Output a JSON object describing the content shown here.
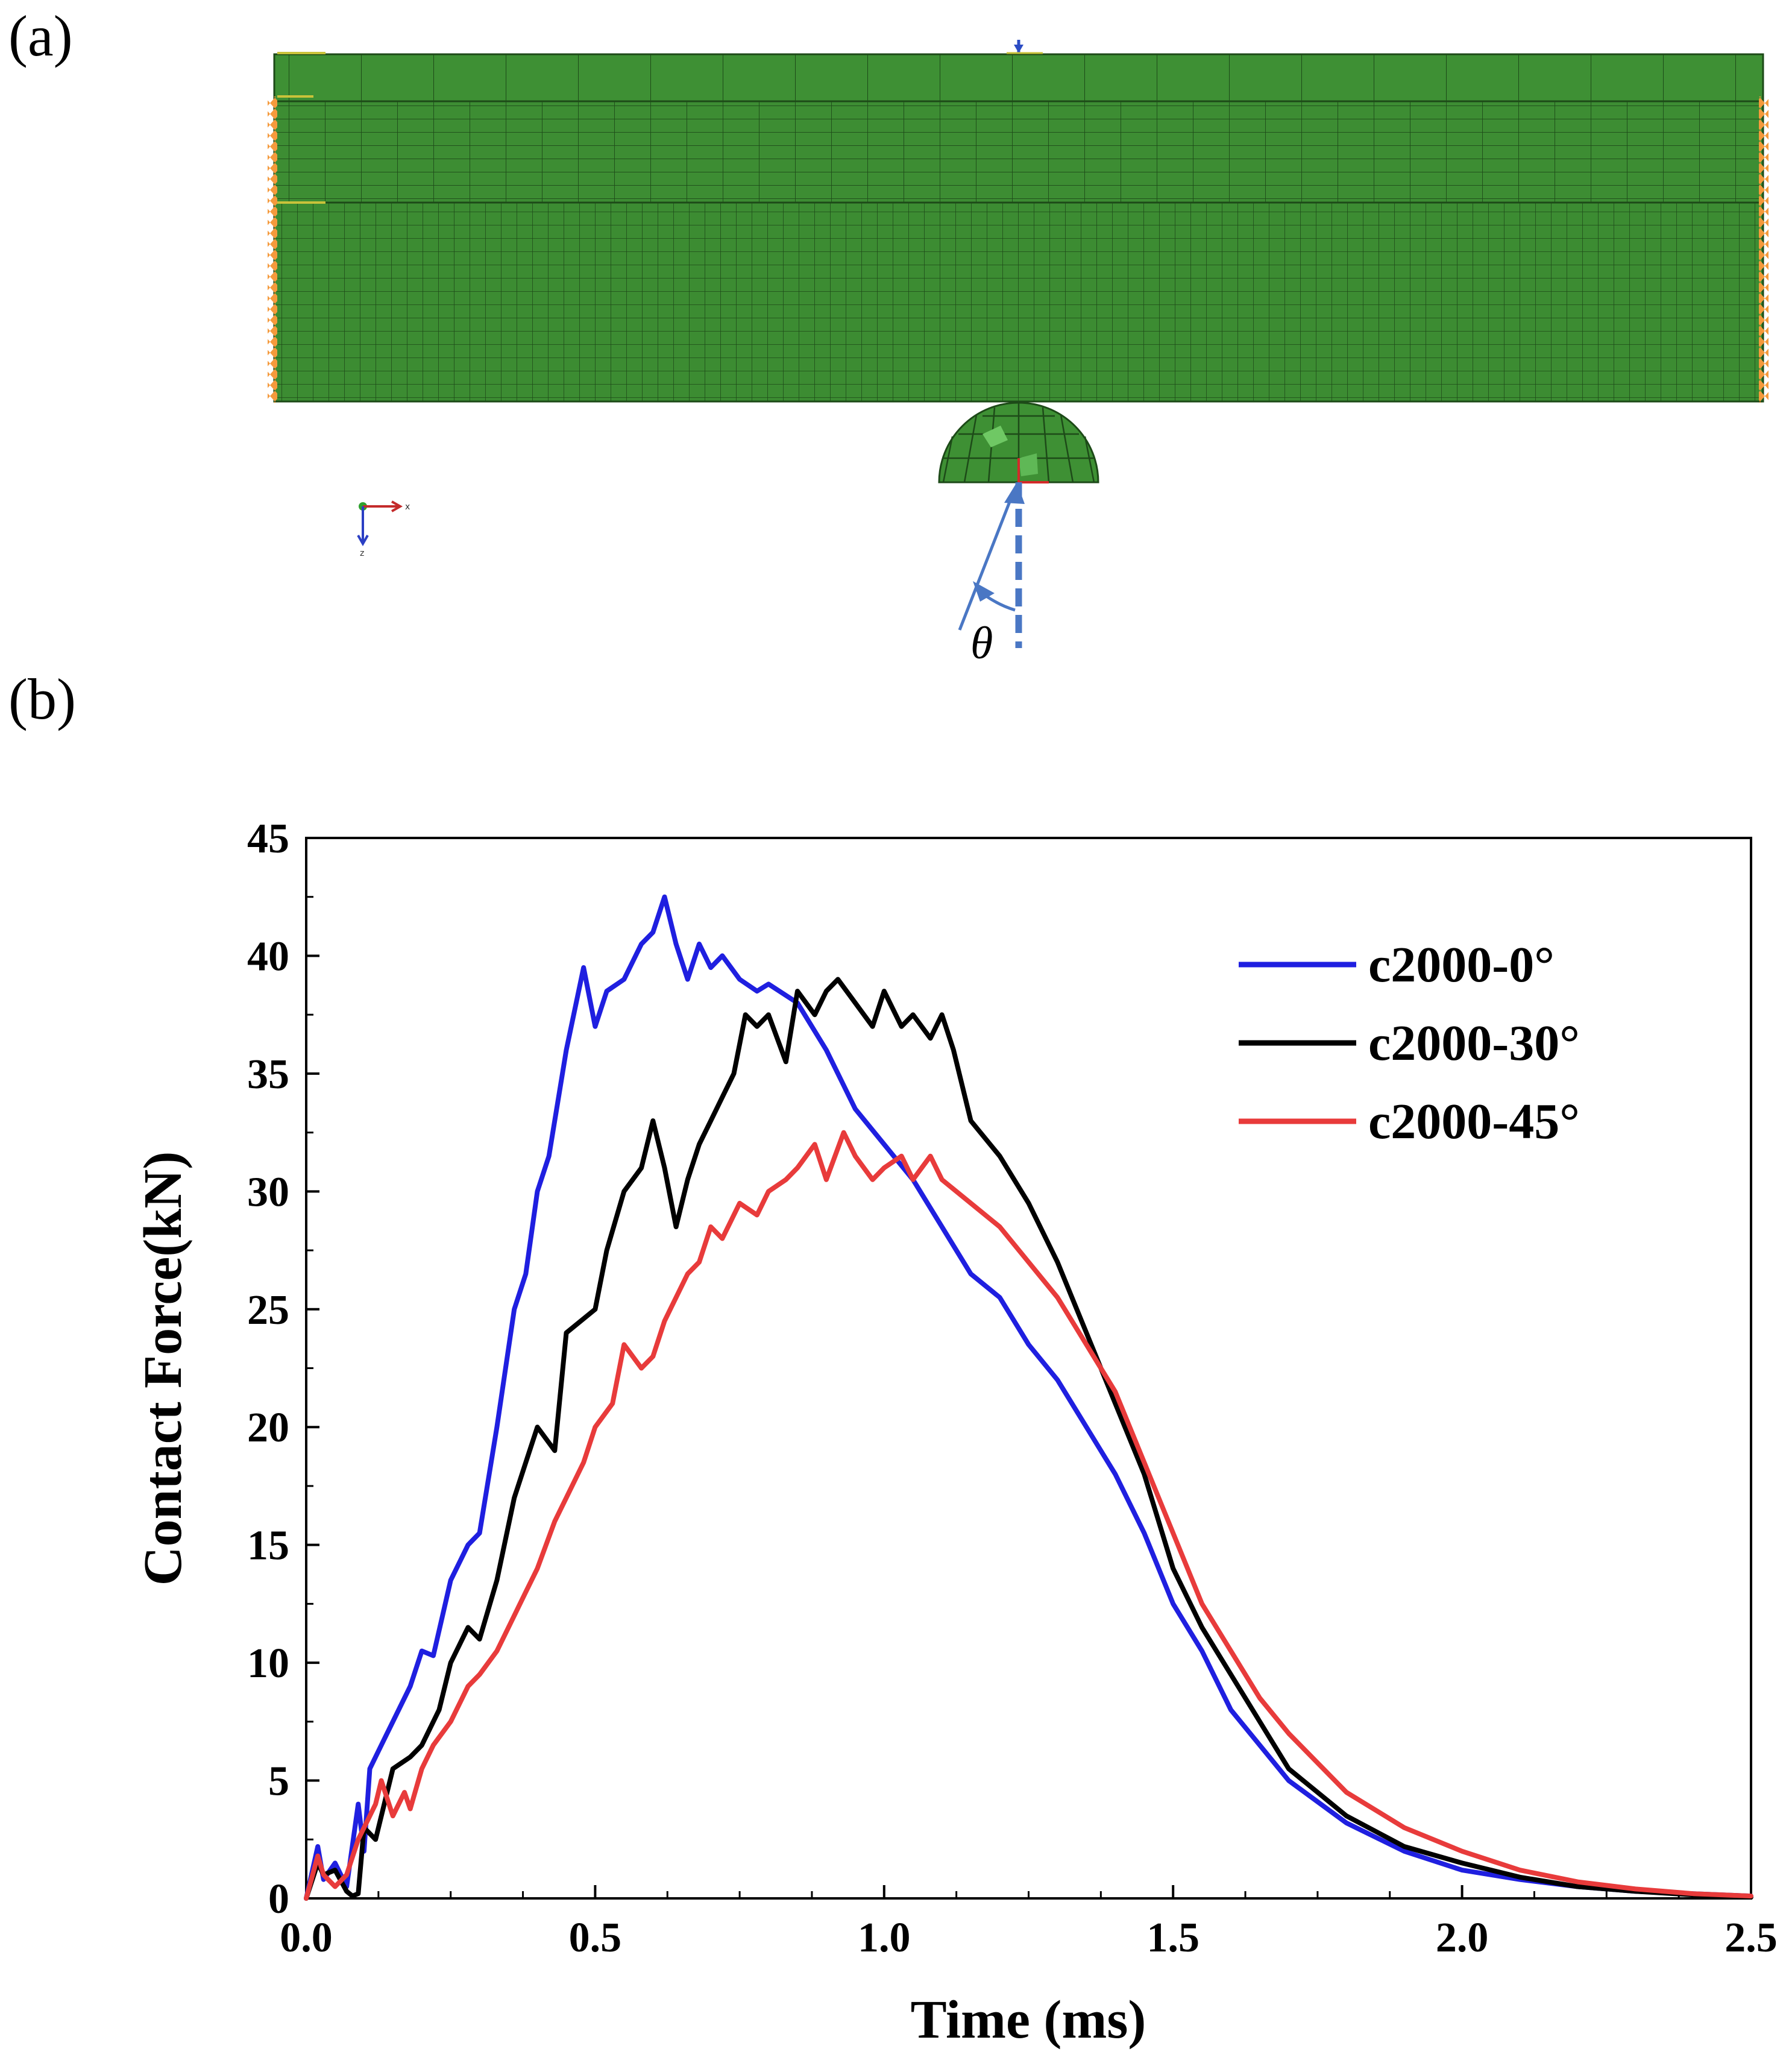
{
  "panels": {
    "a_label": "(a)",
    "b_label": "(b)"
  },
  "model": {
    "angle_symbol": "θ",
    "axis_x_label": "x",
    "axis_z_label": "z",
    "colors": {
      "mesh_fill": "#3c8c32",
      "mesh_line": "#1d4a18",
      "boundary": "#f59a3c",
      "angle_arrow": "#4a77c4"
    }
  },
  "chart_data": {
    "type": "line",
    "title": "",
    "xlabel": "Time (ms)",
    "ylabel": "Contact Force(kN)",
    "xlim": [
      0.0,
      2.5
    ],
    "ylim": [
      0,
      45
    ],
    "xticks": [
      "0.0",
      "0.5",
      "1.0",
      "1.5",
      "2.0",
      "2.5"
    ],
    "yticks": [
      "0",
      "5",
      "10",
      "15",
      "20",
      "25",
      "30",
      "35",
      "40",
      "45"
    ],
    "grid": false,
    "legend_position": "top-right",
    "series": [
      {
        "name": "c2000-0°",
        "color": "#1f1fe0",
        "x": [
          0.0,
          0.02,
          0.03,
          0.05,
          0.07,
          0.09,
          0.1,
          0.11,
          0.13,
          0.15,
          0.18,
          0.2,
          0.22,
          0.25,
          0.28,
          0.3,
          0.33,
          0.36,
          0.38,
          0.4,
          0.42,
          0.45,
          0.48,
          0.5,
          0.52,
          0.55,
          0.58,
          0.6,
          0.62,
          0.64,
          0.66,
          0.68,
          0.7,
          0.72,
          0.75,
          0.78,
          0.8,
          0.85,
          0.9,
          0.95,
          1.0,
          1.05,
          1.1,
          1.15,
          1.2,
          1.25,
          1.3,
          1.35,
          1.4,
          1.45,
          1.5,
          1.55,
          1.6,
          1.65,
          1.7,
          1.8,
          1.9,
          2.0,
          2.1,
          2.2,
          2.3,
          2.4,
          2.5
        ],
        "values": [
          0.0,
          2.2,
          0.8,
          1.5,
          0.5,
          4.0,
          2.0,
          5.5,
          6.5,
          7.5,
          9.0,
          10.5,
          10.3,
          13.5,
          15.0,
          15.5,
          20.0,
          25.0,
          26.5,
          30.0,
          31.5,
          36.0,
          39.5,
          37.0,
          38.5,
          39.0,
          40.5,
          41.0,
          42.5,
          40.5,
          39.0,
          40.5,
          39.5,
          40.0,
          39.0,
          38.5,
          38.8,
          38.0,
          36.0,
          33.5,
          32.0,
          30.5,
          28.5,
          26.5,
          25.5,
          23.5,
          22.0,
          20.0,
          18.0,
          15.5,
          12.5,
          10.5,
          8.0,
          6.5,
          5.0,
          3.2,
          2.0,
          1.2,
          0.8,
          0.5,
          0.3,
          0.2,
          0.1
        ]
      },
      {
        "name": "c2000-30°",
        "color": "#000000",
        "x": [
          0.0,
          0.02,
          0.03,
          0.05,
          0.07,
          0.08,
          0.09,
          0.1,
          0.12,
          0.15,
          0.18,
          0.2,
          0.23,
          0.25,
          0.28,
          0.3,
          0.33,
          0.36,
          0.38,
          0.4,
          0.43,
          0.45,
          0.5,
          0.52,
          0.55,
          0.58,
          0.6,
          0.62,
          0.64,
          0.66,
          0.68,
          0.7,
          0.72,
          0.74,
          0.76,
          0.78,
          0.8,
          0.83,
          0.85,
          0.88,
          0.9,
          0.92,
          0.95,
          0.98,
          1.0,
          1.03,
          1.05,
          1.08,
          1.1,
          1.12,
          1.15,
          1.2,
          1.25,
          1.3,
          1.35,
          1.4,
          1.45,
          1.5,
          1.55,
          1.6,
          1.65,
          1.7,
          1.8,
          1.9,
          2.0,
          2.1,
          2.2,
          2.3,
          2.4,
          2.5
        ],
        "values": [
          0.0,
          1.5,
          1.0,
          1.2,
          0.3,
          0.1,
          0.2,
          3.0,
          2.5,
          5.5,
          6.0,
          6.5,
          8.0,
          10.0,
          11.5,
          11.0,
          13.5,
          17.0,
          18.5,
          20.0,
          19.0,
          24.0,
          25.0,
          27.5,
          30.0,
          31.0,
          33.0,
          31.0,
          28.5,
          30.5,
          32.0,
          33.0,
          34.0,
          35.0,
          37.5,
          37.0,
          37.5,
          35.5,
          38.5,
          37.5,
          38.5,
          39.0,
          38.0,
          37.0,
          38.5,
          37.0,
          37.5,
          36.5,
          37.5,
          36.0,
          33.0,
          31.5,
          29.5,
          27.0,
          24.0,
          21.0,
          18.0,
          14.0,
          11.5,
          9.5,
          7.5,
          5.5,
          3.5,
          2.2,
          1.5,
          0.9,
          0.5,
          0.3,
          0.15,
          0.05
        ]
      },
      {
        "name": "c2000-45°",
        "color": "#e83b3b",
        "x": [
          0.0,
          0.02,
          0.03,
          0.05,
          0.07,
          0.09,
          0.1,
          0.12,
          0.13,
          0.15,
          0.17,
          0.18,
          0.2,
          0.22,
          0.25,
          0.28,
          0.3,
          0.33,
          0.35,
          0.38,
          0.4,
          0.43,
          0.45,
          0.48,
          0.5,
          0.53,
          0.55,
          0.58,
          0.6,
          0.62,
          0.64,
          0.66,
          0.68,
          0.7,
          0.72,
          0.75,
          0.78,
          0.8,
          0.83,
          0.85,
          0.88,
          0.9,
          0.93,
          0.95,
          0.98,
          1.0,
          1.03,
          1.05,
          1.08,
          1.1,
          1.15,
          1.2,
          1.25,
          1.3,
          1.35,
          1.4,
          1.45,
          1.5,
          1.55,
          1.6,
          1.65,
          1.7,
          1.8,
          1.9,
          2.0,
          2.1,
          2.2,
          2.3,
          2.4,
          2.5
        ],
        "values": [
          0.0,
          1.8,
          1.0,
          0.5,
          1.0,
          2.5,
          3.0,
          4.0,
          5.0,
          3.5,
          4.5,
          3.8,
          5.5,
          6.5,
          7.5,
          9.0,
          9.5,
          10.5,
          11.5,
          13.0,
          14.0,
          16.0,
          17.0,
          18.5,
          20.0,
          21.0,
          23.5,
          22.5,
          23.0,
          24.5,
          25.5,
          26.5,
          27.0,
          28.5,
          28.0,
          29.5,
          29.0,
          30.0,
          30.5,
          31.0,
          32.0,
          30.5,
          32.5,
          31.5,
          30.5,
          31.0,
          31.5,
          30.5,
          31.5,
          30.5,
          29.5,
          28.5,
          27.0,
          25.5,
          23.5,
          21.5,
          18.5,
          15.5,
          12.5,
          10.5,
          8.5,
          7.0,
          4.5,
          3.0,
          2.0,
          1.2,
          0.7,
          0.4,
          0.2,
          0.1
        ]
      }
    ]
  }
}
